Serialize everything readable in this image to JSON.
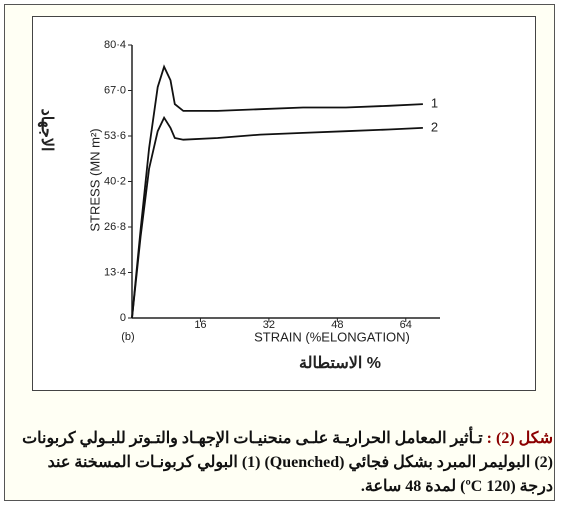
{
  "chart_data": {
    "type": "line",
    "y_label": "STRESS (MN m²)",
    "x_label": "STRAIN (%ELONGATION)",
    "panel_label": "(b)",
    "y_label_ar": "الاجهاد",
    "x_label_ar": "الاستطالة %",
    "x": [
      0,
      2,
      4,
      6,
      7.5,
      9,
      10,
      12,
      20,
      30,
      40,
      50,
      60,
      68
    ],
    "series": [
      {
        "name": "1",
        "color": "#111111",
        "values": [
          0,
          26,
          50,
          68,
          74,
          70,
          63,
          61,
          61,
          61.5,
          62,
          62,
          62.5,
          63
        ]
      },
      {
        "name": "2",
        "color": "#111111",
        "values": [
          0,
          24,
          44,
          55,
          59,
          56,
          53,
          52.5,
          53,
          54,
          54.5,
          55,
          55.5,
          56
        ]
      }
    ],
    "xlim": [
      0,
      72
    ],
    "ylim": [
      0,
      80.4
    ],
    "xticks": [
      16,
      32,
      48,
      64
    ],
    "yticks": [
      0,
      {
        "value": 13.4,
        "label": "13·4"
      },
      {
        "value": 26.8,
        "label": "26·8"
      },
      {
        "value": 40.2,
        "label": "40·2"
      },
      {
        "value": 53.6,
        "label": "53·6"
      },
      {
        "value": 67.0,
        "label": "67·0"
      },
      {
        "value": 80.4,
        "label": "80·4"
      }
    ]
  },
  "caption": {
    "label": "شكل (2) :",
    "text": "تـأثير المعامل الحراريـة علـى منحنيـات الإجهـاد والتـوتر للبـولي كربونات (2) البوليمر المبرد بشكل فجائي (Quenched) (1) البولي كربونـات المسخنة عند درجة (120 ºC) لمدة 48 ساعة."
  }
}
